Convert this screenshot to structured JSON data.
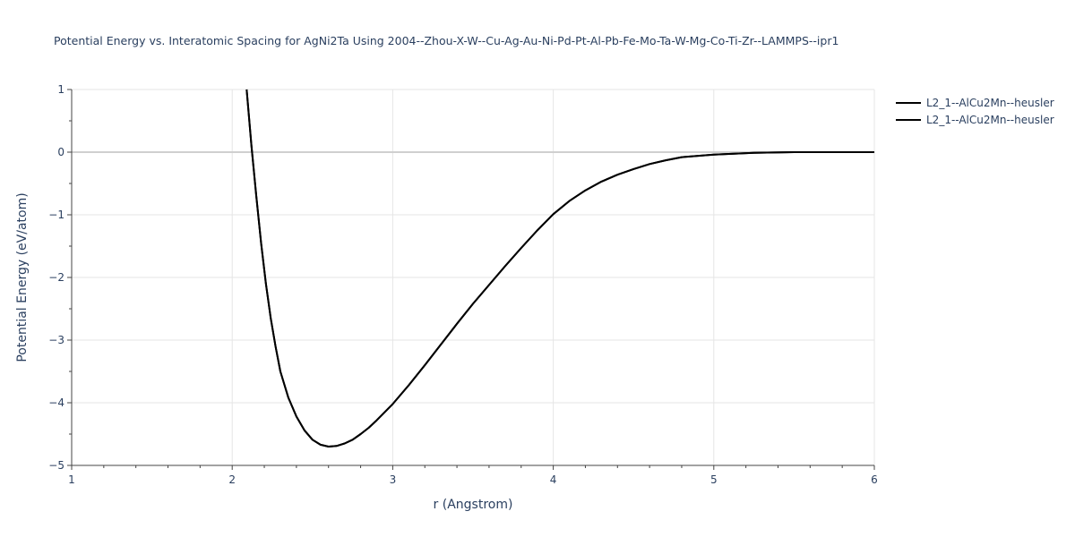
{
  "chart_data": {
    "type": "line",
    "title": "Potential Energy vs. Interatomic Spacing for AgNi2Ta Using 2004--Zhou-X-W--Cu-Ag-Au-Ni-Pd-Pt-Al-Pb-Fe-Mo-Ta-W-Mg-Co-Ti-Zr--LAMMPS--ipr1",
    "xlabel": "r (Angstrom)",
    "ylabel": "Potential Energy (eV/atom)",
    "xlim": [
      1,
      6
    ],
    "ylim": [
      -5,
      1
    ],
    "x_ticks": [
      "1",
      "2",
      "3",
      "4",
      "5",
      "6"
    ],
    "y_ticks": [
      "1",
      "0",
      "−1",
      "−2",
      "−3",
      "−4",
      "−5"
    ],
    "x_tick_values": [
      1,
      2,
      3,
      4,
      5,
      6
    ],
    "y_tick_values": [
      1,
      0,
      -1,
      -2,
      -3,
      -4,
      -5
    ],
    "grid": true,
    "legend_position": "top-right",
    "line_color": "#000000",
    "series": [
      {
        "name": "L2_1--AlCu2Mn--heusler",
        "x": [
          2.09,
          2.12,
          2.15,
          2.18,
          2.21,
          2.24,
          2.27,
          2.3,
          2.35,
          2.4,
          2.45,
          2.5,
          2.55,
          2.6,
          2.65,
          2.7,
          2.75,
          2.8,
          2.85,
          2.9,
          3.0,
          3.1,
          3.2,
          3.3,
          3.4,
          3.5,
          3.6,
          3.7,
          3.8,
          3.9,
          4.0,
          4.1,
          4.2,
          4.3,
          4.4,
          4.5,
          4.6,
          4.7,
          4.8,
          5.0,
          5.25,
          5.5,
          6.0
        ],
        "y": [
          1.0,
          0.1,
          -0.7,
          -1.45,
          -2.1,
          -2.65,
          -3.1,
          -3.5,
          -3.92,
          -4.22,
          -4.44,
          -4.59,
          -4.67,
          -4.7,
          -4.69,
          -4.65,
          -4.59,
          -4.5,
          -4.4,
          -4.28,
          -4.02,
          -3.72,
          -3.4,
          -3.07,
          -2.74,
          -2.42,
          -2.12,
          -1.82,
          -1.53,
          -1.25,
          -0.99,
          -0.78,
          -0.61,
          -0.47,
          -0.36,
          -0.27,
          -0.19,
          -0.13,
          -0.08,
          -0.04,
          -0.01,
          0.0,
          0.0
        ]
      },
      {
        "name": "L2_1--AlCu2Mn--heusler",
        "x": [
          2.09,
          2.12,
          2.15,
          2.18,
          2.21,
          2.24,
          2.27,
          2.3,
          2.35,
          2.4,
          2.45,
          2.5,
          2.55,
          2.6,
          2.65,
          2.7,
          2.75,
          2.8,
          2.85,
          2.9,
          3.0,
          3.1,
          3.2,
          3.3,
          3.4,
          3.5,
          3.6,
          3.7,
          3.8,
          3.9,
          4.0,
          4.1,
          4.2,
          4.3,
          4.4,
          4.5,
          4.6,
          4.7,
          4.8,
          5.0,
          5.25,
          5.5,
          6.0
        ],
        "y": [
          1.0,
          0.1,
          -0.7,
          -1.45,
          -2.1,
          -2.65,
          -3.1,
          -3.5,
          -3.92,
          -4.22,
          -4.44,
          -4.59,
          -4.67,
          -4.7,
          -4.69,
          -4.65,
          -4.59,
          -4.5,
          -4.4,
          -4.28,
          -4.02,
          -3.72,
          -3.4,
          -3.07,
          -2.74,
          -2.42,
          -2.12,
          -1.82,
          -1.53,
          -1.25,
          -0.99,
          -0.78,
          -0.61,
          -0.47,
          -0.36,
          -0.27,
          -0.19,
          -0.13,
          -0.08,
          -0.04,
          -0.01,
          0.0,
          0.0
        ]
      }
    ]
  }
}
